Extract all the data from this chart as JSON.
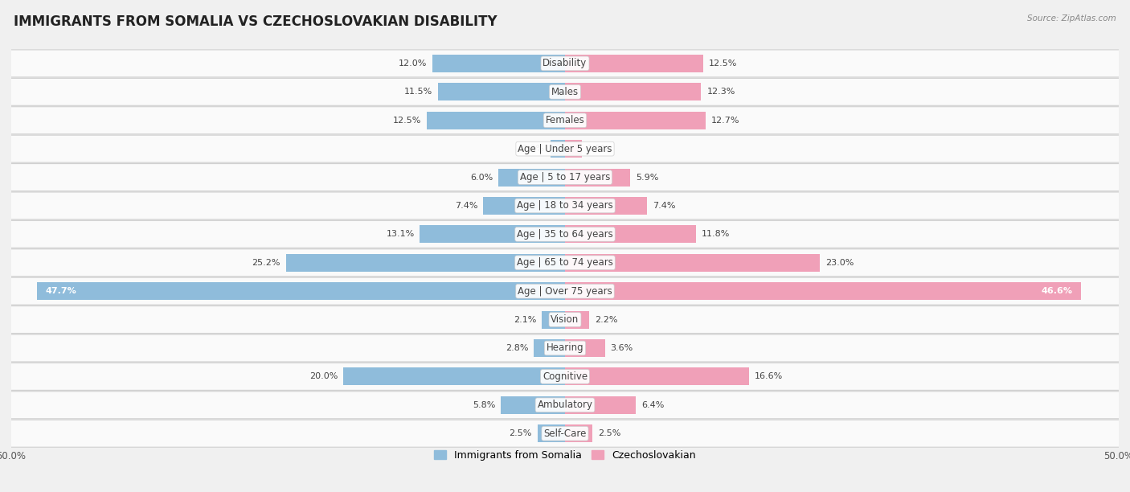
{
  "title": "IMMIGRANTS FROM SOMALIA VS CZECHOSLOVAKIAN DISABILITY",
  "source": "Source: ZipAtlas.com",
  "categories": [
    "Disability",
    "Males",
    "Females",
    "Age | Under 5 years",
    "Age | 5 to 17 years",
    "Age | 18 to 34 years",
    "Age | 35 to 64 years",
    "Age | 65 to 74 years",
    "Age | Over 75 years",
    "Vision",
    "Hearing",
    "Cognitive",
    "Ambulatory",
    "Self-Care"
  ],
  "somalia_values": [
    12.0,
    11.5,
    12.5,
    1.3,
    6.0,
    7.4,
    13.1,
    25.2,
    47.7,
    2.1,
    2.8,
    20.0,
    5.8,
    2.5
  ],
  "czech_values": [
    12.5,
    12.3,
    12.7,
    1.5,
    5.9,
    7.4,
    11.8,
    23.0,
    46.6,
    2.2,
    3.6,
    16.6,
    6.4,
    2.5
  ],
  "somalia_color": "#8fbcdb",
  "czech_color": "#f0a0b8",
  "somalia_label": "Immigrants from Somalia",
  "czech_label": "Czechoslovakian",
  "axis_limit": 50.0,
  "bar_height": 0.62,
  "bg_color": "#f0f0f0",
  "row_color_light": "#fafafa",
  "row_color_dark": "#efefef",
  "title_fontsize": 12,
  "label_fontsize": 8.5,
  "value_fontsize": 8,
  "legend_fontsize": 9,
  "inside_threshold": 40
}
